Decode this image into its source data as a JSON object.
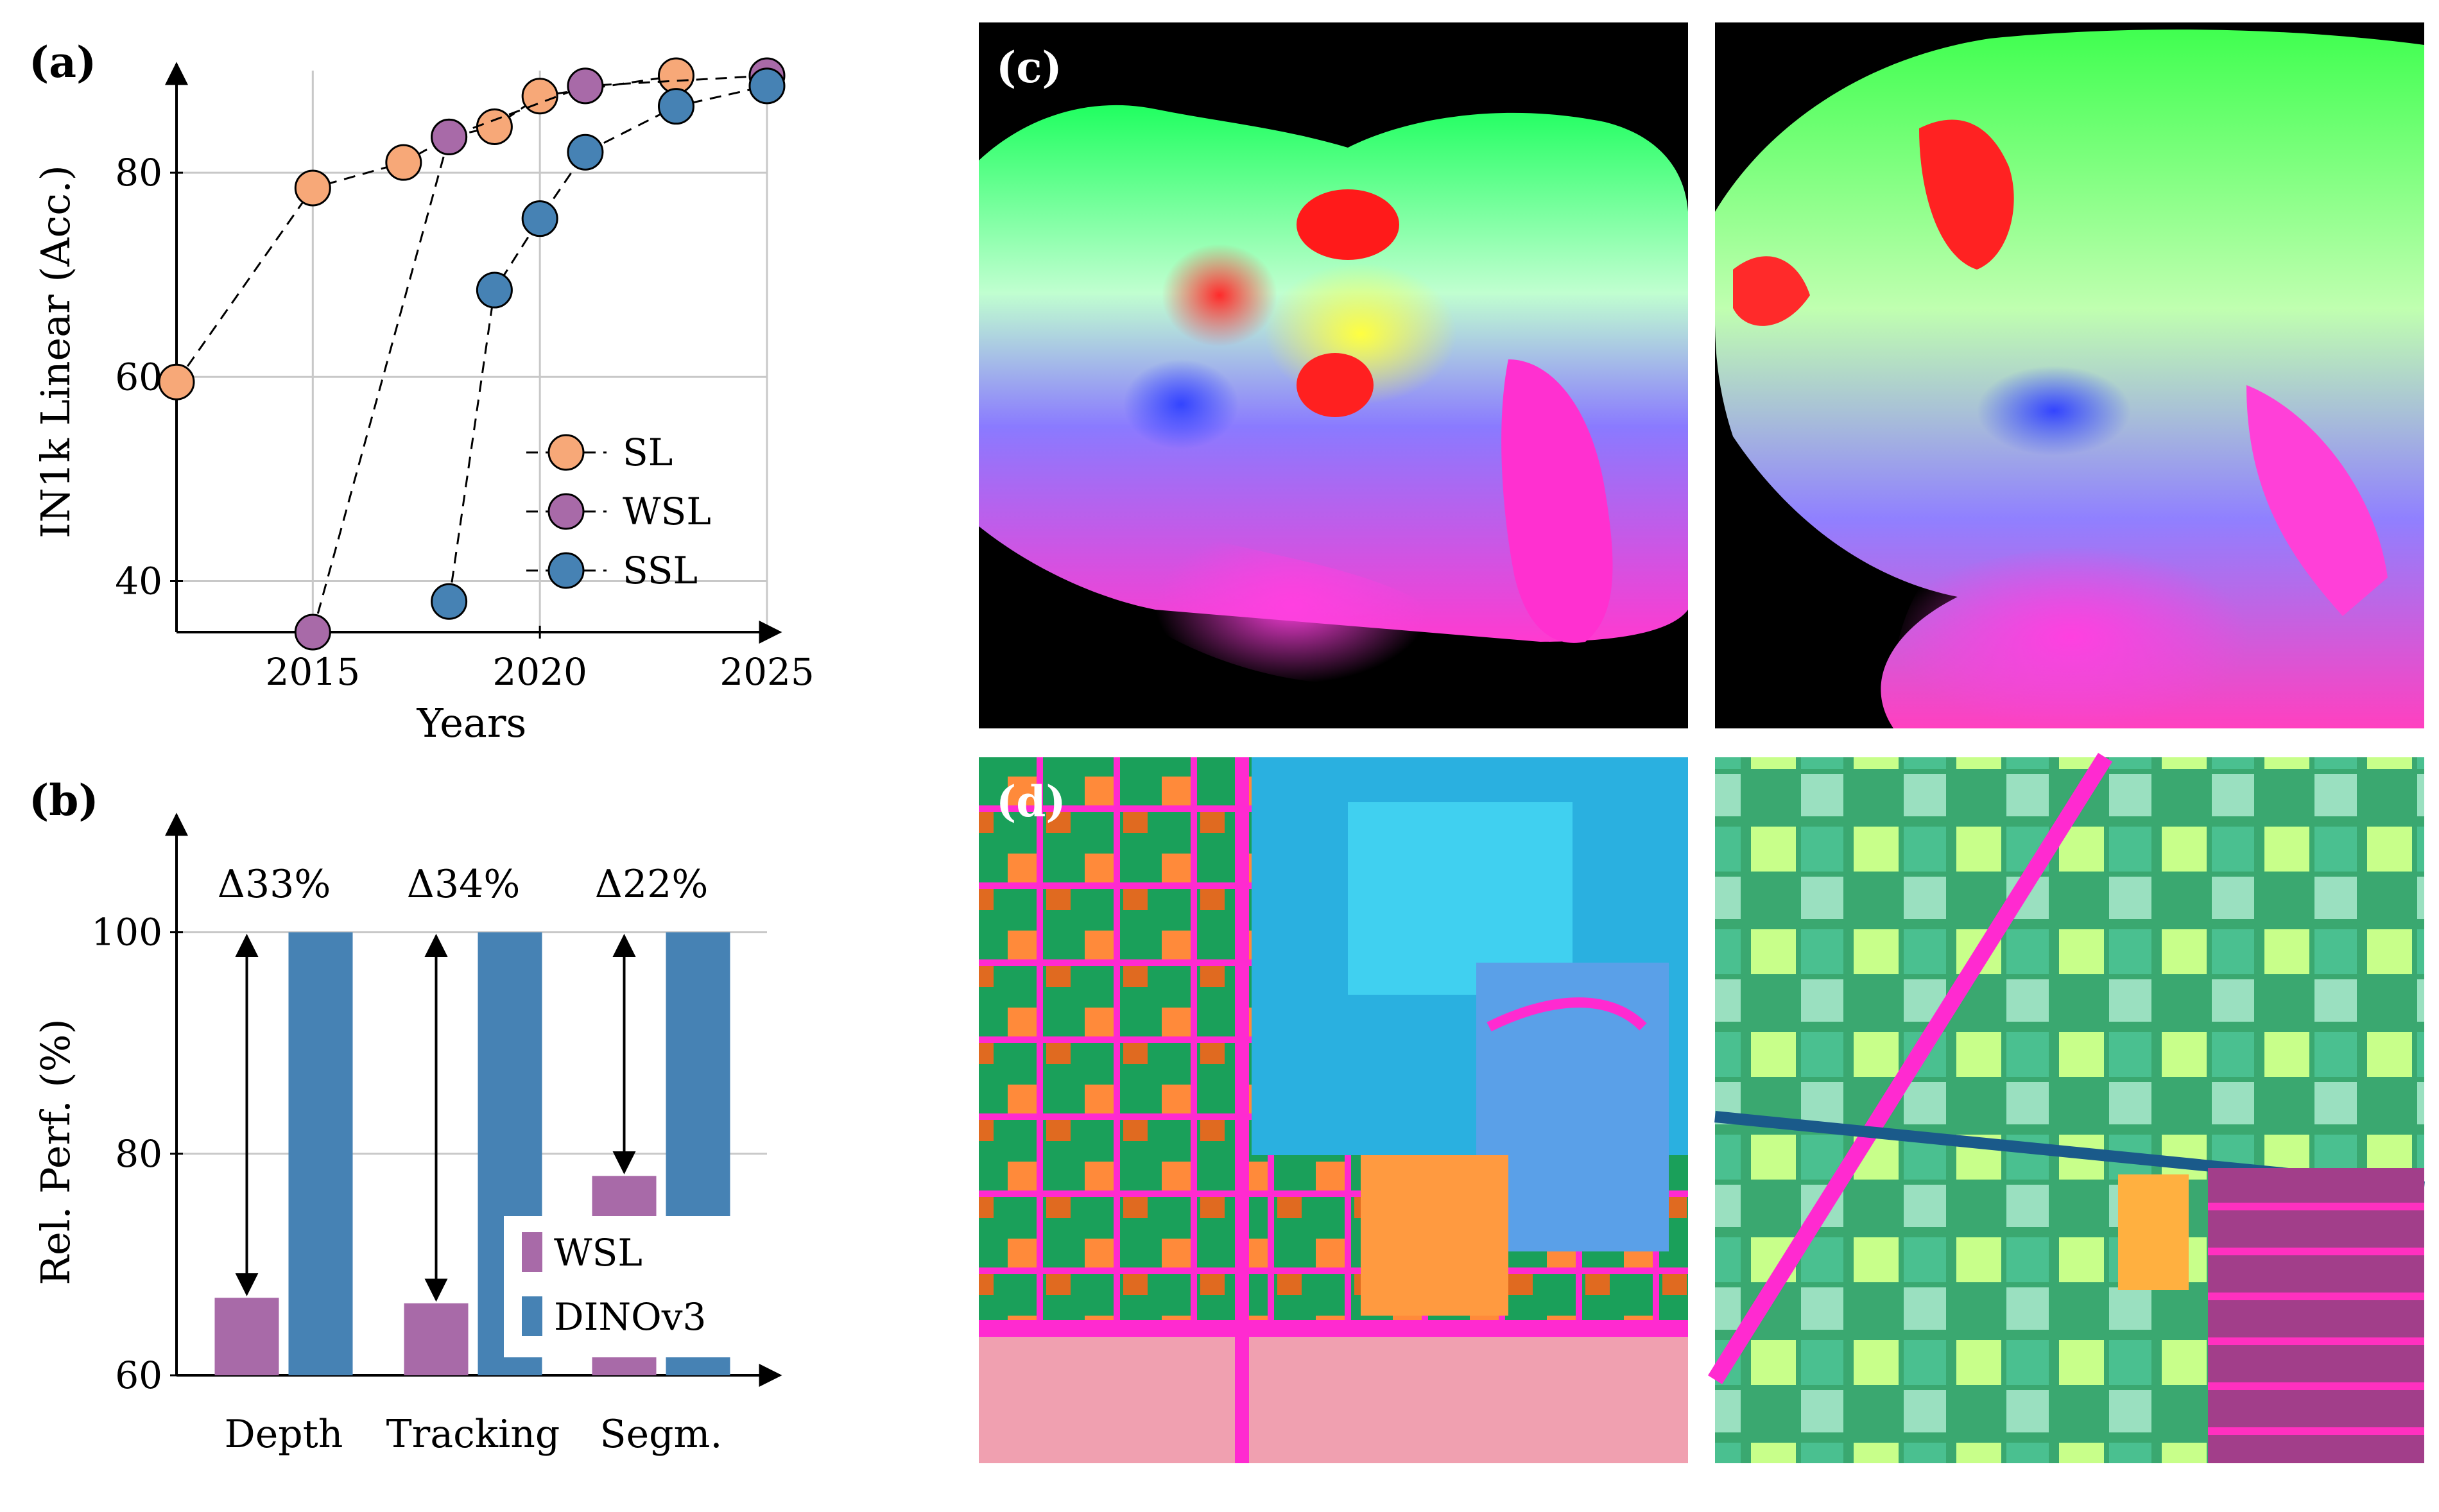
{
  "panels": {
    "a": "(a)",
    "b": "(b)",
    "c": "(c)",
    "d": "(d)"
  },
  "colors": {
    "SL": "#f7a878",
    "WSL": "#a86aa8",
    "SSL": "#4682b4",
    "DINOv3": "#4682b4"
  },
  "chart_data": [
    {
      "type": "scatter",
      "xlabel": "Years",
      "ylabel": "IN1k Linear (Acc.)",
      "xlim": [
        2012,
        2025
      ],
      "ylim": [
        35,
        90
      ],
      "xticks": [
        2015,
        2020,
        2025
      ],
      "yticks": [
        40,
        60,
        80
      ],
      "grid": true,
      "legend_position": "center-right",
      "series": [
        {
          "name": "SL",
          "x": [
            2012,
            2015,
            2017,
            2018,
            2019,
            2020,
            2023
          ],
          "y": [
            59.5,
            78.5,
            81,
            83.5,
            84.5,
            87.5,
            89.5
          ]
        },
        {
          "name": "WSL",
          "x": [
            2015,
            2018,
            2021,
            2025
          ],
          "y": [
            35,
            83.5,
            88.5,
            89.5
          ]
        },
        {
          "name": "SSL",
          "x": [
            2018,
            2019,
            2020,
            2021,
            2023,
            2025
          ],
          "y": [
            38,
            68.5,
            75.5,
            82,
            86.5,
            88.5
          ]
        }
      ]
    },
    {
      "type": "bar",
      "ylabel": "Rel. Perf. (%)",
      "ylim": [
        60,
        110
      ],
      "yticks": [
        60,
        80,
        100
      ],
      "grid": true,
      "categories": [
        "Depth",
        "Tracking",
        "Segm."
      ],
      "series": [
        {
          "name": "WSL",
          "values": [
            67,
            66.5,
            78
          ]
        },
        {
          "name": "DINOv3",
          "values": [
            100,
            100,
            100
          ]
        }
      ],
      "annotations": [
        "Δ33%",
        "Δ34%",
        "Δ22%"
      ],
      "legend_position": "bottom-right"
    }
  ]
}
